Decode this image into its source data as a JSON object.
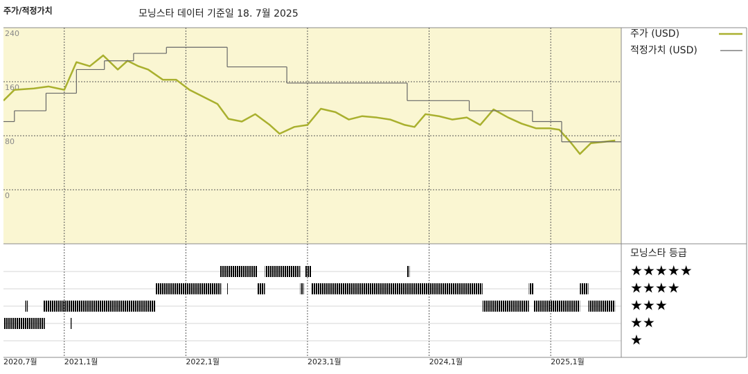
{
  "chart_data": {
    "type": "line",
    "title": "주가/적정가치",
    "subtitle": "모닝스타 데이터 기준일 18. 7월 2025",
    "xlim": [
      2020.5,
      2025.58
    ],
    "xticks": [
      {
        "value": 2020.5,
        "label": "2020,7월"
      },
      {
        "value": 2021.0,
        "label": "2021,1월"
      },
      {
        "value": 2022.0,
        "label": "2022,1월"
      },
      {
        "value": 2023.0,
        "label": "2023,1월"
      },
      {
        "value": 2024.0,
        "label": "2024,1월"
      },
      {
        "value": 2025.0,
        "label": "2025,1월"
      }
    ],
    "ylim": [
      -80,
      240
    ],
    "yticks": [
      0,
      80,
      160,
      240
    ],
    "grid": true,
    "series": [
      {
        "name": "주가 (USD)",
        "color": "#a9b02e",
        "x": [
          2020.5,
          2020.59,
          2020.75,
          2020.87,
          2021.0,
          2021.1,
          2021.21,
          2021.32,
          2021.44,
          2021.52,
          2021.61,
          2021.69,
          2021.81,
          2021.92,
          2022.03,
          2022.15,
          2022.26,
          2022.35,
          2022.46,
          2022.57,
          2022.69,
          2022.77,
          2022.89,
          2023.0,
          2023.11,
          2023.23,
          2023.34,
          2023.45,
          2023.57,
          2023.68,
          2023.8,
          2023.88,
          2023.97,
          2024.08,
          2024.19,
          2024.31,
          2024.42,
          2024.53,
          2024.65,
          2024.76,
          2024.88,
          2024.99,
          2025.07,
          2025.16,
          2025.24,
          2025.33,
          2025.44,
          2025.53
        ],
        "values": [
          132,
          148,
          150,
          153,
          148,
          189,
          183,
          199,
          178,
          191,
          183,
          178,
          163,
          163,
          148,
          137,
          127,
          105,
          101,
          112,
          96,
          83,
          93,
          96,
          120,
          115,
          104,
          109,
          107,
          104,
          96,
          93,
          112,
          109,
          104,
          107,
          96,
          119,
          107,
          98,
          91,
          91,
          89,
          71,
          53,
          69,
          71,
          73
        ]
      },
      {
        "name": "적정가치 (USD)",
        "color": "#666666",
        "step": true,
        "x": [
          2020.5,
          2020.59,
          2020.85,
          2021.1,
          2021.33,
          2021.57,
          2021.84,
          2022.34,
          2022.83,
          2023.82,
          2024.33,
          2024.85,
          2025.09
        ],
        "values": [
          101,
          117,
          143,
          178,
          191,
          202,
          211,
          182,
          158,
          132,
          117,
          101,
          71
        ]
      }
    ],
    "rating": {
      "title": "모닝스타 등급",
      "levels": [
        5,
        4,
        3,
        2,
        1
      ],
      "labels": [
        "★★★★★",
        "★★★★",
        "★★★",
        "★★",
        "★"
      ],
      "color": "#333333",
      "top_color": "#3d8c70",
      "periods": [
        {
          "stars": 2,
          "start": 2020.5,
          "end": 2020.84
        },
        {
          "stars": 3,
          "start": 2020.68,
          "end": 2020.7
        },
        {
          "stars": 3,
          "start": 2020.83,
          "end": 2021.75
        },
        {
          "stars": 2,
          "start": 2021.05,
          "end": 2021.06
        },
        {
          "stars": 4,
          "start": 2021.75,
          "end": 2022.29
        },
        {
          "stars": 5,
          "start": 2022.28,
          "end": 2022.59
        },
        {
          "stars": 4,
          "start": 2022.34,
          "end": 2022.35
        },
        {
          "stars": 4,
          "start": 2022.59,
          "end": 2022.65
        },
        {
          "stars": 5,
          "start": 2022.65,
          "end": 2022.94
        },
        {
          "stars": 4,
          "start": 2022.94,
          "end": 2022.97
        },
        {
          "stars": 5,
          "start": 2022.98,
          "end": 2023.03
        },
        {
          "stars": 4,
          "start": 2023.03,
          "end": 2024.44
        },
        {
          "stars": 5,
          "start": 2023.82,
          "end": 2023.84
        },
        {
          "stars": 3,
          "start": 2024.44,
          "end": 2024.82
        },
        {
          "stars": 4,
          "start": 2024.82,
          "end": 2024.86
        },
        {
          "stars": 3,
          "start": 2024.86,
          "end": 2025.24
        },
        {
          "stars": 4,
          "start": 2025.24,
          "end": 2025.31
        },
        {
          "stars": 3,
          "start": 2025.31,
          "end": 2025.53
        }
      ]
    }
  }
}
